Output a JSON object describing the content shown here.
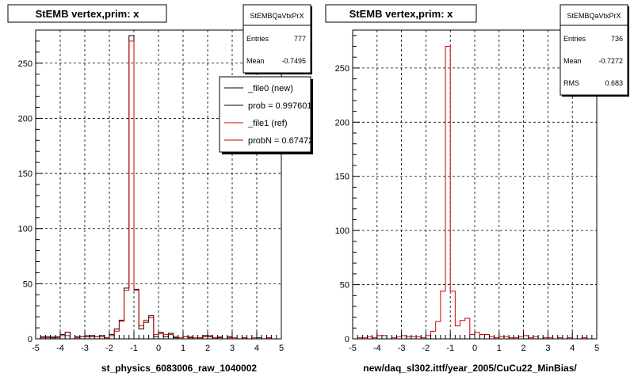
{
  "chart_data": [
    {
      "type": "histogram",
      "title": "StEMB  vertex,prim: x",
      "xlabel": "st_physics_6083006_raw_1040002",
      "xlim": [
        -5,
        5
      ],
      "ylim": [
        0,
        280
      ],
      "x_ticks": [
        "-5",
        "-4",
        "-3",
        "-2",
        "-1",
        "0",
        "1",
        "2",
        "3",
        "4",
        "5"
      ],
      "y_ticks": [
        "0",
        "50",
        "100",
        "150",
        "200",
        "250"
      ],
      "grid": true,
      "bin_width": 0.2,
      "stats": {
        "name": "StEMBQaVtxPrX",
        "entries_label": "Entries",
        "entries": "777",
        "mean_label": "Mean",
        "mean": "-0.7495"
      },
      "legend": {
        "placement": "top-right",
        "entries": [
          {
            "label": "_file0 (new)",
            "color": "#000000"
          },
          {
            "label": "prob = 0.997601",
            "color": "#000000"
          },
          {
            "label": "_file1 (ref)",
            "color": "#cc0000"
          },
          {
            "label": "probN = 0.674727",
            "color": "#cc0000"
          }
        ]
      },
      "series": [
        {
          "color": "#000000",
          "values": [
            0,
            2,
            2,
            1,
            2,
            4,
            6,
            0,
            2,
            2,
            2,
            3,
            2,
            3,
            1,
            4,
            9,
            17,
            46,
            275,
            45,
            9,
            15,
            21,
            2,
            5,
            2,
            5,
            1,
            0,
            2,
            1,
            0,
            1,
            3,
            2,
            1,
            1,
            0,
            2,
            0,
            0,
            1,
            0,
            0,
            1,
            0,
            1,
            0,
            0
          ]
        },
        {
          "color": "#cc0000",
          "values": [
            0,
            1,
            1,
            2,
            1,
            3,
            3,
            0,
            1,
            2,
            3,
            2,
            2,
            2,
            1,
            3,
            7,
            16,
            44,
            270,
            44,
            12,
            17,
            19,
            4,
            6,
            4,
            4,
            2,
            1,
            2,
            2,
            1,
            1,
            2,
            3,
            1,
            2,
            0,
            1,
            1,
            0,
            1,
            0,
            1,
            0,
            0,
            1,
            0,
            0
          ]
        }
      ]
    },
    {
      "type": "histogram",
      "title": "StEMB  vertex,prim: x",
      "xlabel": "new/daq_sl302.ittf/year_2005/CuCu22_MinBias/",
      "xlim": [
        -5,
        5
      ],
      "ylim": [
        0,
        285
      ],
      "x_ticks": [
        "-5",
        "-4",
        "-3",
        "-2",
        "-1",
        "0",
        "1",
        "2",
        "3",
        "4",
        "5"
      ],
      "y_ticks": [
        "0",
        "50",
        "100",
        "150",
        "200",
        "250"
      ],
      "grid": true,
      "bin_width": 0.2,
      "stats": {
        "name": "StEMBQaVtxPrX",
        "entries_label": "Entries",
        "entries": "736",
        "mean_label": "Mean",
        "mean": "-0.7272",
        "rms_label": "RMS",
        "rms": "0.683"
      },
      "series": [
        {
          "color": "#cc0000",
          "values": [
            0,
            1,
            1,
            2,
            1,
            3,
            3,
            0,
            1,
            2,
            3,
            2,
            2,
            2,
            1,
            3,
            7,
            16,
            44,
            270,
            44,
            12,
            17,
            19,
            4,
            6,
            4,
            4,
            2,
            1,
            2,
            2,
            1,
            1,
            2,
            3,
            1,
            2,
            0,
            1,
            1,
            0,
            1,
            0,
            1,
            0,
            0,
            1,
            0,
            0
          ]
        }
      ]
    }
  ]
}
